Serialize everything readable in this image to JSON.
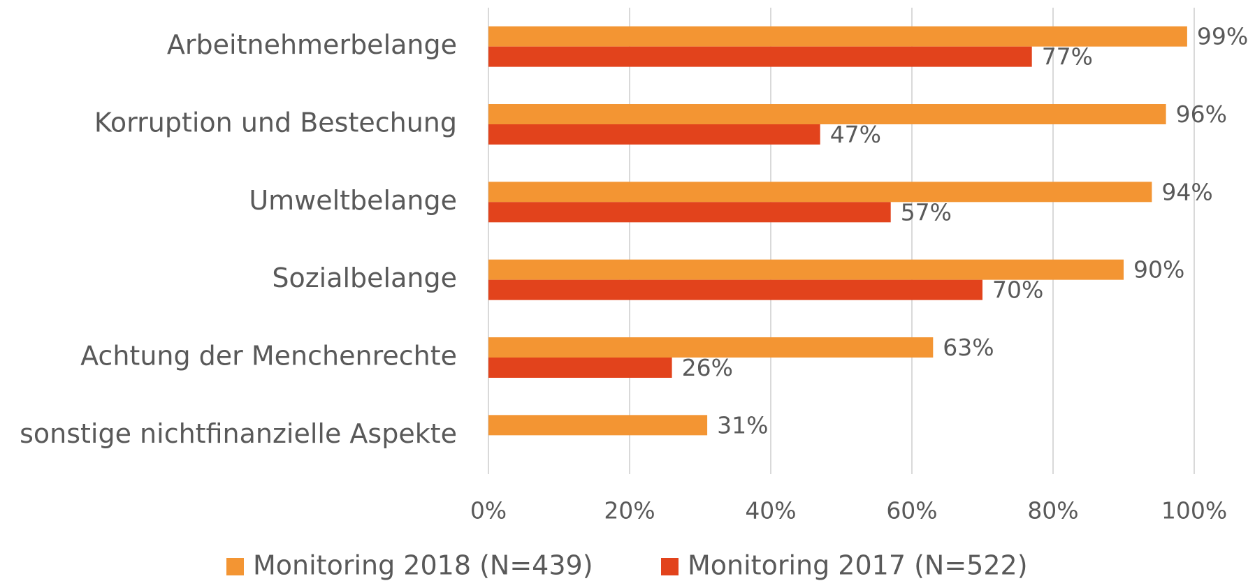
{
  "chart_data": {
    "type": "hbar",
    "categories": [
      "Arbeitnehmerbelange",
      "Korruption und Bestechung",
      "Umweltbelange",
      "Sozialbelange",
      "Achtung der Menchenrechte",
      "sonstige nichtfinanzielle Aspekte"
    ],
    "series": [
      {
        "name": "Monitoring 2018 (N=439)",
        "color": "#F39533",
        "values": [
          99,
          96,
          94,
          90,
          63,
          31
        ],
        "value_labels": [
          "99%",
          "96%",
          "94%",
          "90%",
          "63%",
          "31%"
        ]
      },
      {
        "name": "Monitoring 2017 (N=522)",
        "color": "#E2431C",
        "values": [
          77,
          47,
          57,
          70,
          26,
          null
        ],
        "value_labels": [
          "77%",
          "47%",
          "57%",
          "70%",
          "26%",
          null
        ]
      }
    ],
    "xlim": [
      0,
      100
    ],
    "xticks": [
      {
        "value": 0,
        "label": "0%"
      },
      {
        "value": 20,
        "label": "20%"
      },
      {
        "value": 40,
        "label": "40%"
      },
      {
        "value": 60,
        "label": "60%"
      },
      {
        "value": 80,
        "label": "80%"
      },
      {
        "value": 100,
        "label": "100%"
      }
    ],
    "grid": true,
    "legend": "bottom"
  }
}
